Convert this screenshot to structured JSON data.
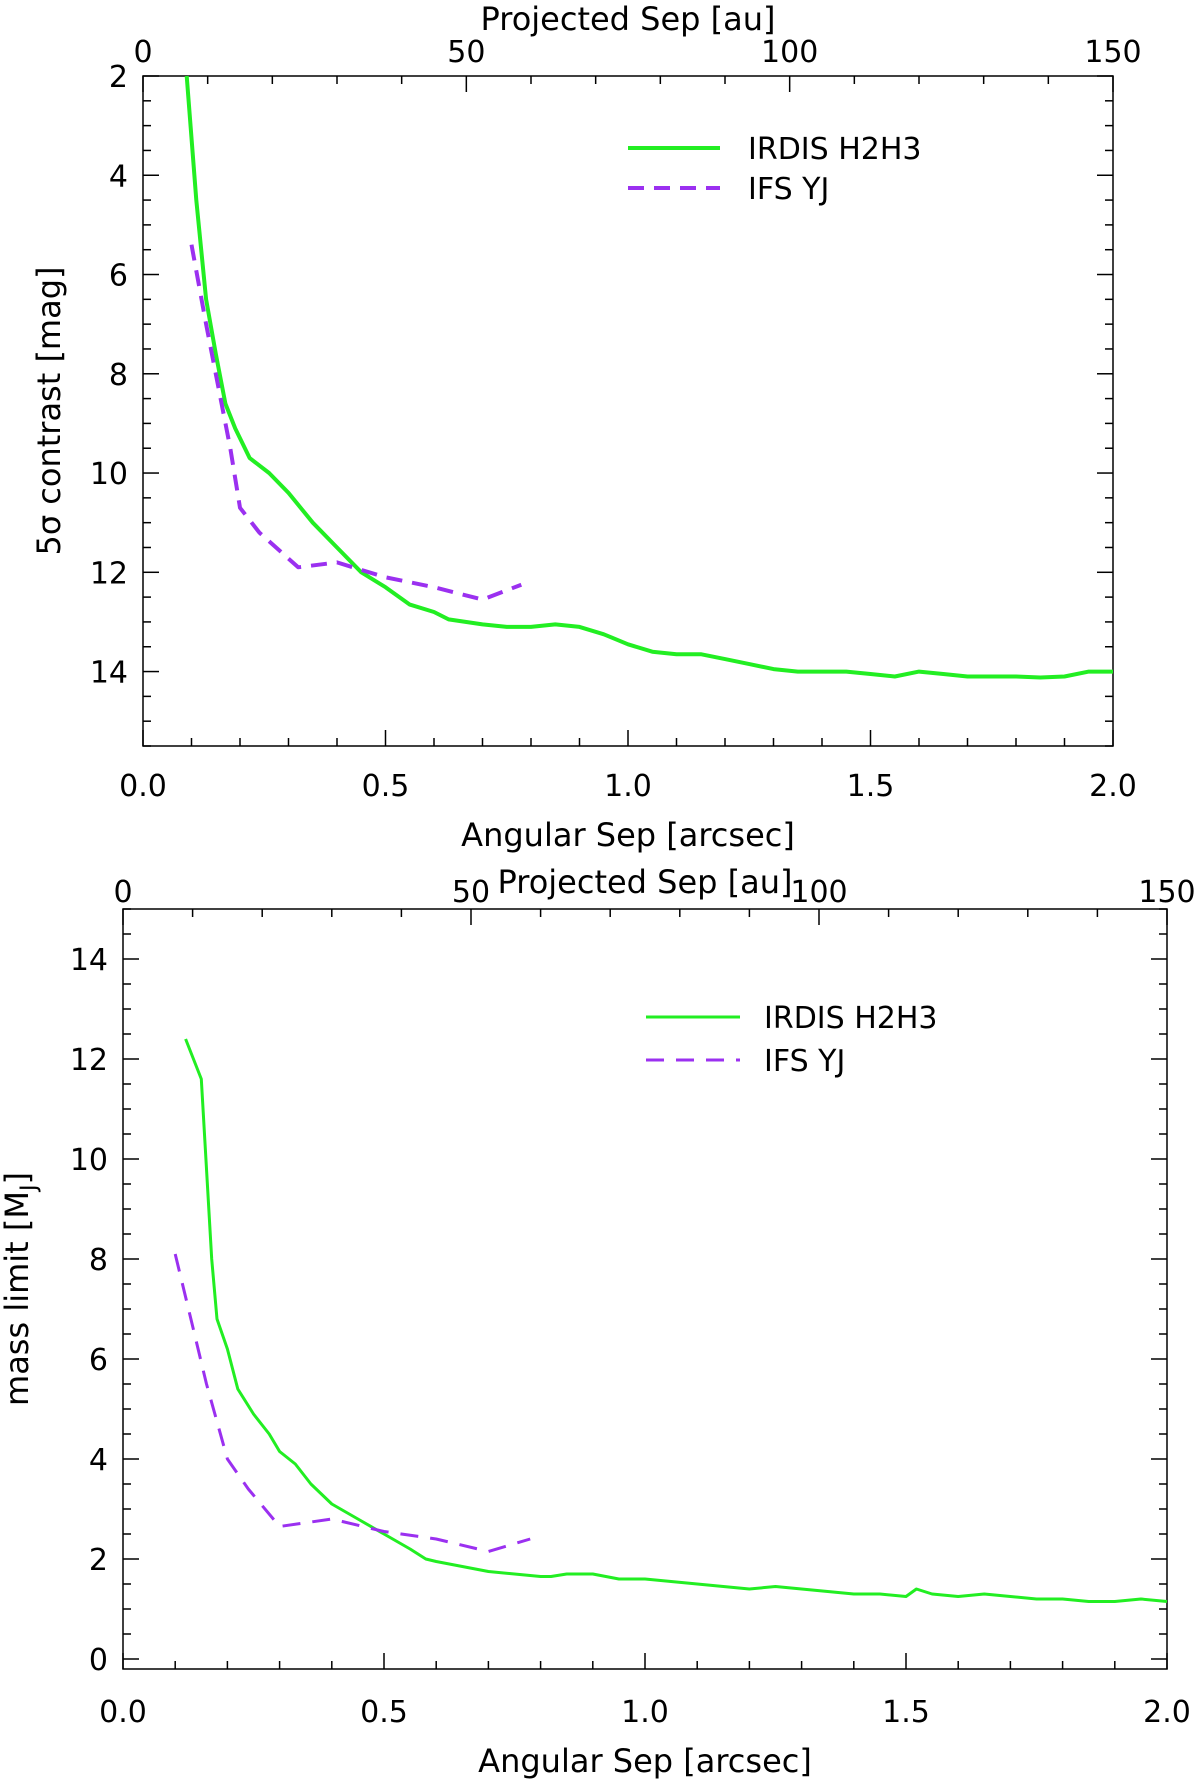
{
  "chart_data": [
    {
      "type": "line",
      "xlabel": "Angular Sep [arcsec]",
      "xlabel_top": "Projected Sep [au]",
      "ylabel": "5σ contrast [mag]",
      "xlim": [
        0.0,
        2.0
      ],
      "ylim": [
        15.5,
        2.0
      ],
      "xlim_top": [
        0,
        150
      ],
      "x_ticks": [
        "0.0",
        "0.5",
        "1.0",
        "1.5",
        "2.0"
      ],
      "x_tick_values": [
        0.0,
        0.5,
        1.0,
        1.5,
        2.0
      ],
      "x_top_ticks": [
        "0",
        "50",
        "100",
        "150"
      ],
      "x_top_tick_values": [
        0,
        50,
        100,
        150
      ],
      "y_ticks": [
        "2",
        "4",
        "6",
        "8",
        "10",
        "12",
        "14"
      ],
      "y_tick_values": [
        2,
        4,
        6,
        8,
        10,
        12,
        14
      ],
      "y_minor_step": 0.5,
      "legend_position": "top-right",
      "series": [
        {
          "name": "IRDIS H2H3",
          "color": "#22ee22",
          "style": "solid",
          "x": [
            0.09,
            0.11,
            0.13,
            0.15,
            0.17,
            0.19,
            0.22,
            0.26,
            0.3,
            0.35,
            0.4,
            0.45,
            0.5,
            0.55,
            0.6,
            0.63,
            0.7,
            0.75,
            0.8,
            0.85,
            0.9,
            0.95,
            1.0,
            1.05,
            1.1,
            1.15,
            1.2,
            1.25,
            1.3,
            1.35,
            1.4,
            1.45,
            1.5,
            1.55,
            1.6,
            1.65,
            1.7,
            1.75,
            1.8,
            1.85,
            1.9,
            1.95,
            2.0
          ],
          "values": [
            2.0,
            4.5,
            6.5,
            7.6,
            8.6,
            9.1,
            9.7,
            10.0,
            10.4,
            11.0,
            11.5,
            12.0,
            12.3,
            12.65,
            12.8,
            12.95,
            13.05,
            13.1,
            13.1,
            13.05,
            13.1,
            13.25,
            13.45,
            13.6,
            13.65,
            13.65,
            13.75,
            13.85,
            13.95,
            14.0,
            14.0,
            14.0,
            14.05,
            14.1,
            14.0,
            14.05,
            14.1,
            14.1,
            14.1,
            14.12,
            14.1,
            14.0,
            14.0
          ]
        },
        {
          "name": "IFS YJ",
          "color": "#9b30f0",
          "style": "dashed",
          "x": [
            0.1,
            0.13,
            0.16,
            0.18,
            0.2,
            0.24,
            0.32,
            0.4,
            0.5,
            0.6,
            0.7,
            0.78
          ],
          "values": [
            5.4,
            7.0,
            8.5,
            9.5,
            10.7,
            11.2,
            11.9,
            11.8,
            12.1,
            12.3,
            12.55,
            12.25
          ]
        }
      ]
    },
    {
      "type": "line",
      "xlabel": "Angular Sep [arcsec]",
      "xlabel_top": "Projected Sep [au]",
      "ylabel": "mass limit [M",
      "ylabel_sub": "J",
      "ylabel_end": "]",
      "xlim": [
        0.0,
        2.0
      ],
      "ylim": [
        -0.2,
        15.0
      ],
      "xlim_top": [
        0,
        150
      ],
      "x_ticks": [
        "0.0",
        "0.5",
        "1.0",
        "1.5",
        "2.0"
      ],
      "x_tick_values": [
        0.0,
        0.5,
        1.0,
        1.5,
        2.0
      ],
      "x_top_ticks": [
        "0",
        "50",
        "100",
        "150"
      ],
      "x_top_tick_values": [
        0,
        50,
        100,
        150
      ],
      "y_ticks": [
        "0",
        "2",
        "4",
        "6",
        "8",
        "10",
        "12",
        "14"
      ],
      "y_tick_values": [
        0,
        2,
        4,
        6,
        8,
        10,
        12,
        14
      ],
      "y_minor_step": 0.5,
      "legend_position": "top-right",
      "series": [
        {
          "name": "IRDIS H2H3",
          "color": "#22ee22",
          "style": "solid",
          "x": [
            0.12,
            0.15,
            0.17,
            0.18,
            0.2,
            0.22,
            0.25,
            0.28,
            0.3,
            0.33,
            0.36,
            0.4,
            0.45,
            0.5,
            0.55,
            0.58,
            0.6,
            0.65,
            0.7,
            0.75,
            0.8,
            0.82,
            0.85,
            0.9,
            0.95,
            1.0,
            1.05,
            1.1,
            1.15,
            1.2,
            1.25,
            1.3,
            1.35,
            1.4,
            1.45,
            1.5,
            1.52,
            1.55,
            1.6,
            1.65,
            1.7,
            1.75,
            1.8,
            1.85,
            1.9,
            1.95,
            2.0
          ],
          "values": [
            12.4,
            11.6,
            8.0,
            6.8,
            6.2,
            5.4,
            4.9,
            4.5,
            4.15,
            3.9,
            3.5,
            3.1,
            2.8,
            2.5,
            2.2,
            2.0,
            1.95,
            1.85,
            1.75,
            1.7,
            1.65,
            1.65,
            1.7,
            1.7,
            1.6,
            1.6,
            1.55,
            1.5,
            1.45,
            1.4,
            1.45,
            1.4,
            1.35,
            1.3,
            1.3,
            1.25,
            1.4,
            1.3,
            1.25,
            1.3,
            1.25,
            1.2,
            1.2,
            1.15,
            1.15,
            1.2,
            1.15
          ]
        },
        {
          "name": "IFS YJ",
          "color": "#9b30f0",
          "style": "dashed",
          "x": [
            0.1,
            0.13,
            0.16,
            0.2,
            0.24,
            0.3,
            0.4,
            0.5,
            0.6,
            0.7,
            0.78
          ],
          "values": [
            8.1,
            6.8,
            5.5,
            4.0,
            3.4,
            2.65,
            2.8,
            2.55,
            2.4,
            2.15,
            2.4
          ]
        }
      ]
    }
  ]
}
